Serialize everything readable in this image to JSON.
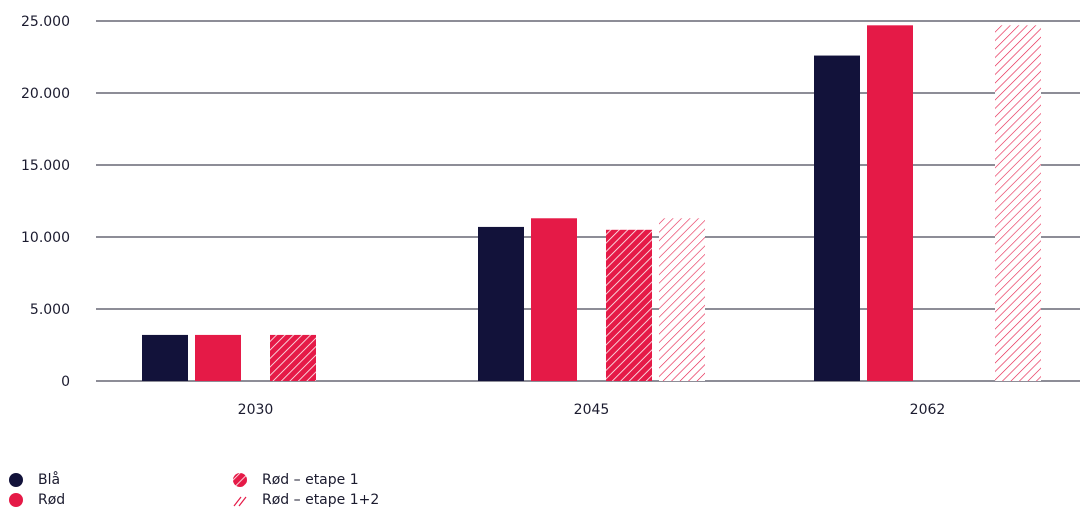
{
  "chart_data": {
    "type": "bar",
    "categories": [
      "2030",
      "2045",
      "2062"
    ],
    "series": [
      {
        "name": "Blå",
        "values": [
          3200,
          10700,
          22600
        ],
        "color": "#12123a",
        "pattern": "solid"
      },
      {
        "name": "Rød",
        "values": [
          3200,
          11300,
          24700
        ],
        "color": "#e51a47",
        "pattern": "solid"
      },
      {
        "name": "Rød – etape 1",
        "values": [
          3200,
          10500,
          null
        ],
        "color": "#e51a47",
        "pattern": "hatch-dense"
      },
      {
        "name": "Rød – etape 1+2",
        "values": [
          null,
          11300,
          24700
        ],
        "color": "#e51a47",
        "pattern": "hatch-light"
      }
    ],
    "y_ticks": [
      "0",
      "5.000",
      "10.000",
      "15.000",
      "20.000",
      "25.000"
    ],
    "ylim": [
      0,
      25000
    ],
    "grid": true,
    "legend_position": "bottom-left",
    "title": "",
    "xlabel": "",
    "ylabel": ""
  }
}
